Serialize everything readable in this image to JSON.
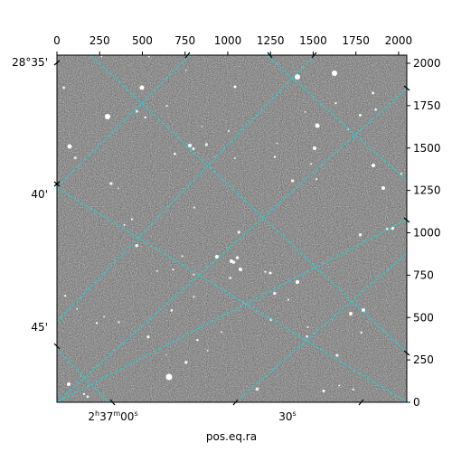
{
  "chart_data": {
    "type": "image",
    "xlabel": "pos.eq.ra",
    "ylabel": "",
    "pixel_axes": {
      "x_ticks": [
        "0",
        "250",
        "500",
        "750",
        "1000",
        "1250",
        "1500",
        "1750",
        "2000"
      ],
      "y_ticks": [
        "0",
        "250",
        "500",
        "750",
        "1000",
        "1250",
        "1500",
        "1750",
        "2000"
      ],
      "xlim": [
        0,
        2048
      ],
      "ylim": [
        0,
        2048
      ]
    },
    "world_axes": {
      "ra_ticks": [
        {
          "h": "2",
          "m": "37",
          "s": "00"
        },
        {
          "h": "",
          "m": "",
          "s": "30"
        }
      ],
      "dec_ticks": [
        "28°35'",
        "40'",
        "45'"
      ]
    },
    "grid": true,
    "grid_color": "#00e5e5",
    "colormap": "gray"
  }
}
